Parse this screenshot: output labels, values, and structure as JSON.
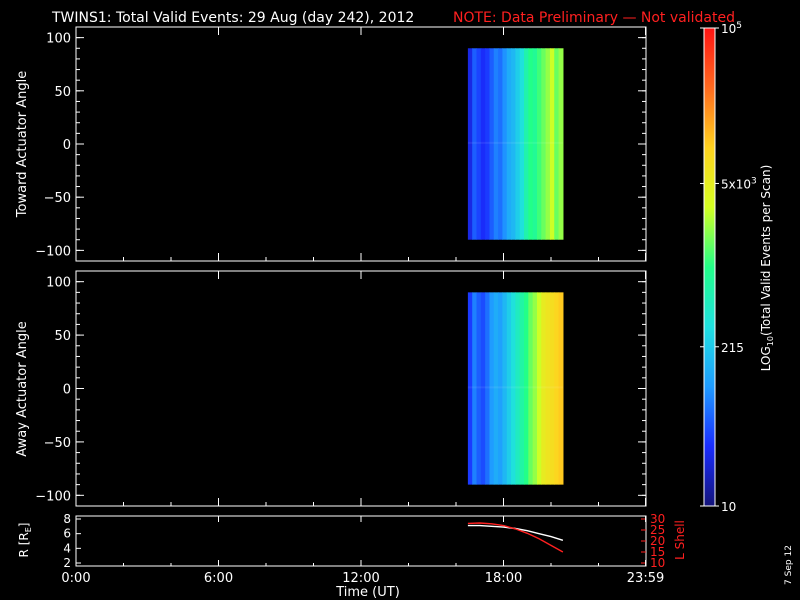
{
  "title": {
    "main": "TWINS1: Total Valid Events: 29 Aug (day 242), 2012",
    "note": "NOTE: Data Preliminary — Not validated"
  },
  "colors": {
    "background": "#000000",
    "text": "#ffffff",
    "note": "#ff2020",
    "lshell": "#ff2020"
  },
  "datestamp": "7 Sep 12",
  "chart_data": [
    {
      "id": "toward",
      "type": "heatmap",
      "ylabel": "Toward Actuator Angle",
      "ylim": [
        -110,
        110
      ],
      "yticks": [
        100,
        50,
        0,
        -50,
        -100
      ],
      "xlim_hours": [
        0,
        24
      ],
      "data_time_range_hours": [
        16.5,
        20.5
      ],
      "angle_range": [
        -90,
        90
      ],
      "column_levels": [
        0.1,
        0.18,
        0.15,
        0.12,
        0.14,
        0.18,
        0.22,
        0.2,
        0.24,
        0.28,
        0.3,
        0.34,
        0.38,
        0.45,
        0.5,
        0.48,
        0.52,
        0.55,
        0.58,
        0.62,
        0.55,
        0.58
      ]
    },
    {
      "id": "away",
      "type": "heatmap",
      "ylabel": "Away Actuator Angle",
      "ylim": [
        -110,
        110
      ],
      "yticks": [
        100,
        50,
        0,
        -50,
        -100
      ],
      "xlim_hours": [
        0,
        24
      ],
      "data_time_range_hours": [
        16.5,
        20.5
      ],
      "angle_range": [
        -90,
        90
      ],
      "column_levels": [
        0.14,
        0.22,
        0.18,
        0.16,
        0.2,
        0.25,
        0.28,
        0.26,
        0.3,
        0.34,
        0.38,
        0.42,
        0.46,
        0.5,
        0.55,
        0.58,
        0.62,
        0.68,
        0.7,
        0.72,
        0.74,
        0.76
      ]
    },
    {
      "id": "orbit",
      "type": "line",
      "ylabel": "R [R",
      "ylabel_sub": "E",
      "ylabel_end": "]",
      "ylim": [
        2,
        8
      ],
      "yticks": [
        8,
        6,
        4,
        2
      ],
      "ylabel_right": "L Shell",
      "ylim_right": [
        10,
        30
      ],
      "yticks_right": [
        30,
        25,
        20,
        15,
        10
      ],
      "xlabel": "Time (UT)",
      "xticks": [
        "0:00",
        "6:00",
        "12:00",
        "18:00",
        "23:59"
      ],
      "xtick_hours": [
        0,
        6,
        12,
        18,
        23.98
      ],
      "series": [
        {
          "axis": "left",
          "color": "#ffffff",
          "x": [
            16.5,
            17.0,
            17.5,
            18.0,
            18.5,
            19.0,
            19.5,
            20.0,
            20.5
          ],
          "y": [
            7.1,
            7.1,
            7.0,
            6.9,
            6.7,
            6.4,
            6.0,
            5.6,
            5.1
          ]
        },
        {
          "axis": "right",
          "color": "#ff2020",
          "x": [
            16.5,
            17.0,
            17.5,
            18.0,
            18.5,
            19.0,
            19.5,
            20.0,
            20.5
          ],
          "y": [
            28.0,
            28.2,
            27.8,
            27.0,
            25.5,
            23.5,
            21.0,
            18.0,
            15.0
          ]
        }
      ]
    }
  ],
  "colorbar": {
    "label_prefix": "LOG",
    "label_sub": "10",
    "label_suffix": "(Total Valid Events per Scan)",
    "scale": "log",
    "range": [
      10,
      100000
    ],
    "ticks": [
      {
        "value": 10,
        "label": "10"
      },
      {
        "value": 215,
        "label": "215"
      },
      {
        "value": 5000,
        "label": "5x10",
        "sup": "3"
      },
      {
        "value": 100000,
        "label": "10",
        "sup": "5"
      }
    ],
    "stops": [
      "#14147a",
      "#1a2dff",
      "#1f9cff",
      "#1fe0e0",
      "#22ff88",
      "#d4ff22",
      "#ffd21f",
      "#ff6a1f",
      "#ff1414"
    ]
  }
}
